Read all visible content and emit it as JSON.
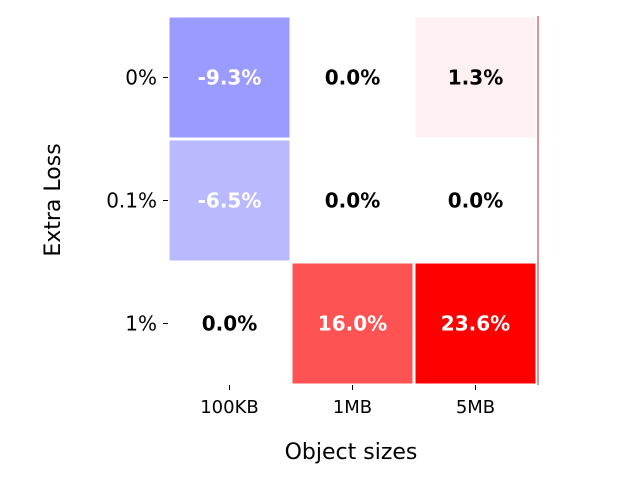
{
  "chart_data": {
    "type": "heatmap",
    "title": "",
    "xlabel": "Object sizes",
    "ylabel": "Extra Loss",
    "x_categories": [
      "100KB",
      "1MB",
      "5MB"
    ],
    "y_categories": [
      "0%",
      "0.1%",
      "1%"
    ],
    "values": [
      [
        -9.3,
        0.0,
        1.3
      ],
      [
        -6.5,
        0.0,
        0.0
      ],
      [
        0.0,
        16.0,
        23.6
      ]
    ],
    "value_labels": [
      [
        "-9.3%",
        "0.0%",
        "1.3%"
      ],
      [
        "-6.5%",
        "0.0%",
        "0.0%"
      ],
      [
        "0.0%",
        "16.0%",
        "23.6%"
      ]
    ],
    "colormap": "bwr",
    "vmin": -23.6,
    "vmax": 23.6,
    "colorbar": false,
    "grid": false
  }
}
